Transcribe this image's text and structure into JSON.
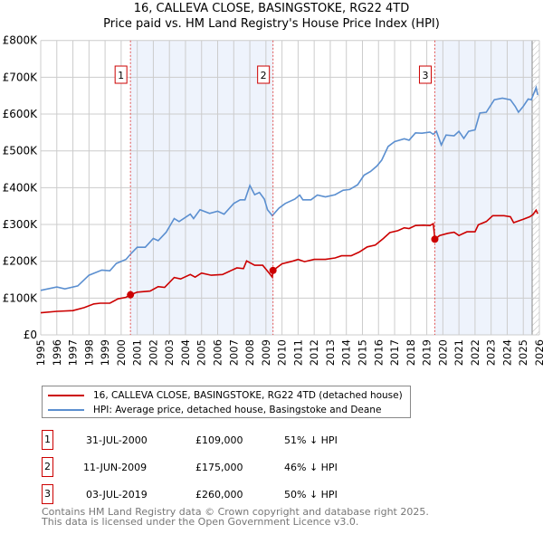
{
  "chart_data": {
    "type": "line",
    "title": "16, CALLEVA CLOSE, BASINGSTOKE, RG22 4TD",
    "subtitle": "Price paid vs. HM Land Registry's House Price Index (HPI)",
    "xlim": [
      1995,
      2026
    ],
    "ylim": [
      0,
      800000
    ],
    "x_ticks": [
      "1995",
      "1996",
      "1997",
      "1998",
      "1999",
      "2000",
      "2001",
      "2002",
      "2003",
      "2004",
      "2005",
      "2006",
      "2007",
      "2008",
      "2009",
      "2010",
      "2011",
      "2012",
      "2013",
      "2014",
      "2015",
      "2016",
      "2017",
      "2018",
      "2019",
      "2020",
      "2021",
      "2022",
      "2023",
      "2024",
      "2025",
      "2026"
    ],
    "y_ticks": [
      {
        "v": 0,
        "label": "£0"
      },
      {
        "v": 100000,
        "label": "£100K"
      },
      {
        "v": 200000,
        "label": "£200K"
      },
      {
        "v": 300000,
        "label": "£300K"
      },
      {
        "v": 400000,
        "label": "£400K"
      },
      {
        "v": 500000,
        "label": "£500K"
      },
      {
        "v": 600000,
        "label": "£600K"
      },
      {
        "v": 700000,
        "label": "£700K"
      },
      {
        "v": 800000,
        "label": "£800K"
      }
    ],
    "grid": true,
    "series": [
      {
        "name": "16, CALLEVA CLOSE, BASINGSTOKE, RG22 4TD (detached house)",
        "color": "#cc0000",
        "points": [
          [
            1995,
            60
          ],
          [
            1996,
            64
          ],
          [
            1997,
            66
          ],
          [
            1997.7,
            74
          ],
          [
            1998.3,
            84
          ],
          [
            1998.7,
            86
          ],
          [
            1999.3,
            86
          ],
          [
            1999.8,
            98
          ],
          [
            2000.3,
            102
          ],
          [
            2000.58,
            109
          ],
          [
            2001,
            116
          ],
          [
            2001.8,
            119
          ],
          [
            2002.3,
            131
          ],
          [
            2002.7,
            129
          ],
          [
            2003.3,
            156
          ],
          [
            2003.7,
            152
          ],
          [
            2004.3,
            164
          ],
          [
            2004.6,
            157
          ],
          [
            2005,
            168
          ],
          [
            2005.6,
            162
          ],
          [
            2006.3,
            164
          ],
          [
            2006.8,
            174
          ],
          [
            2007.2,
            182
          ],
          [
            2007.6,
            180
          ],
          [
            2007.8,
            201
          ],
          [
            2008.3,
            189
          ],
          [
            2008.8,
            189
          ],
          [
            2009.2,
            168
          ],
          [
            2009.4,
            157
          ],
          [
            2009.44,
            175
          ],
          [
            2010,
            193
          ],
          [
            2010.7,
            201
          ],
          [
            2011,
            205
          ],
          [
            2011.4,
            199
          ],
          [
            2012,
            205
          ],
          [
            2012.7,
            205
          ],
          [
            2013.3,
            209
          ],
          [
            2013.7,
            215
          ],
          [
            2014.3,
            215
          ],
          [
            2014.8,
            225
          ],
          [
            2015.3,
            239
          ],
          [
            2015.8,
            244
          ],
          [
            2016.3,
            262
          ],
          [
            2016.7,
            278
          ],
          [
            2017.2,
            283
          ],
          [
            2017.6,
            291
          ],
          [
            2017.9,
            289
          ],
          [
            2018.3,
            297
          ],
          [
            2018.8,
            298
          ],
          [
            2019.2,
            297
          ],
          [
            2019.4,
            302
          ],
          [
            2019.47,
            276
          ],
          [
            2019.5,
            260
          ],
          [
            2019.8,
            270
          ],
          [
            2020.3,
            276
          ],
          [
            2020.7,
            279
          ],
          [
            2021,
            270
          ],
          [
            2021.5,
            280
          ],
          [
            2022,
            280
          ],
          [
            2022.2,
            299
          ],
          [
            2022.7,
            308
          ],
          [
            2023.1,
            324
          ],
          [
            2023.8,
            324
          ],
          [
            2024.2,
            321
          ],
          [
            2024.4,
            305
          ],
          [
            2025,
            314
          ],
          [
            2025.4,
            321
          ],
          [
            2025.6,
            327
          ],
          [
            2025.8,
            339
          ],
          [
            2025.9,
            329
          ]
        ]
      },
      {
        "name": "HPI: Average price, detached house, Basingstoke and Deane",
        "color": "#5b8fd0",
        "points": [
          [
            1995,
            121
          ],
          [
            1996,
            130
          ],
          [
            1996.5,
            125
          ],
          [
            1997.3,
            133
          ],
          [
            1998,
            162
          ],
          [
            1998.8,
            176
          ],
          [
            1999.3,
            174
          ],
          [
            1999.7,
            194
          ],
          [
            2000.3,
            205
          ],
          [
            2000.6,
            220
          ],
          [
            2001,
            238
          ],
          [
            2001.5,
            238
          ],
          [
            2002,
            262
          ],
          [
            2002.3,
            256
          ],
          [
            2002.8,
            279
          ],
          [
            2003.3,
            316
          ],
          [
            2003.6,
            308
          ],
          [
            2004.3,
            328
          ],
          [
            2004.5,
            316
          ],
          [
            2004.9,
            340
          ],
          [
            2005.5,
            330
          ],
          [
            2006,
            336
          ],
          [
            2006.4,
            328
          ],
          [
            2007,
            357
          ],
          [
            2007.4,
            367
          ],
          [
            2007.7,
            367
          ],
          [
            2008,
            406
          ],
          [
            2008.3,
            381
          ],
          [
            2008.6,
            387
          ],
          [
            2008.9,
            369
          ],
          [
            2009.1,
            340
          ],
          [
            2009.4,
            324
          ],
          [
            2009.8,
            344
          ],
          [
            2010.2,
            357
          ],
          [
            2010.8,
            369
          ],
          [
            2011.1,
            380
          ],
          [
            2011.3,
            367
          ],
          [
            2011.8,
            367
          ],
          [
            2012.2,
            380
          ],
          [
            2012.7,
            375
          ],
          [
            2013.3,
            381
          ],
          [
            2013.8,
            393
          ],
          [
            2014.2,
            395
          ],
          [
            2014.7,
            408
          ],
          [
            2015.1,
            434
          ],
          [
            2015.5,
            444
          ],
          [
            2015.9,
            459
          ],
          [
            2016.2,
            475
          ],
          [
            2016.6,
            512
          ],
          [
            2017,
            525
          ],
          [
            2017.6,
            533
          ],
          [
            2017.9,
            529
          ],
          [
            2018.3,
            549
          ],
          [
            2018.7,
            548
          ],
          [
            2019.2,
            551
          ],
          [
            2019.4,
            545
          ],
          [
            2019.6,
            553
          ],
          [
            2019.9,
            516
          ],
          [
            2020.2,
            543
          ],
          [
            2020.7,
            541
          ],
          [
            2021,
            553
          ],
          [
            2021.3,
            534
          ],
          [
            2021.6,
            553
          ],
          [
            2022,
            557
          ],
          [
            2022.3,
            603
          ],
          [
            2022.7,
            605
          ],
          [
            2023.2,
            639
          ],
          [
            2023.7,
            643
          ],
          [
            2024.2,
            639
          ],
          [
            2024.5,
            621
          ],
          [
            2024.7,
            605
          ],
          [
            2025,
            621
          ],
          [
            2025.3,
            641
          ],
          [
            2025.5,
            639
          ],
          [
            2025.8,
            672
          ],
          [
            2025.9,
            652
          ]
        ]
      }
    ],
    "points_unit": "thousand GBP",
    "sales": [
      {
        "id": "1",
        "x": 2000.58,
        "value": 109000,
        "date": "31-JUL-2000",
        "price": "£109,000",
        "hpi": "51% ↓ HPI"
      },
      {
        "id": "2",
        "x": 2009.44,
        "value": 175000,
        "date": "11-JUN-2009",
        "price": "£175,000",
        "hpi": "46% ↓ HPI"
      },
      {
        "id": "3",
        "x": 2019.5,
        "value": 260000,
        "date": "03-JUL-2019",
        "price": "£260,000",
        "hpi": "50% ↓ HPI"
      }
    ],
    "shaded_ranges": [
      [
        2000.58,
        2009.44
      ],
      [
        2019.5,
        2025.55
      ]
    ],
    "forecast_hatch_from": 2025.55,
    "legend_position": "below"
  },
  "footer": {
    "line1": "Contains HM Land Registry data © Crown copyright and database right 2025.",
    "line2": "This data is licensed under the Open Government Licence v3.0."
  }
}
